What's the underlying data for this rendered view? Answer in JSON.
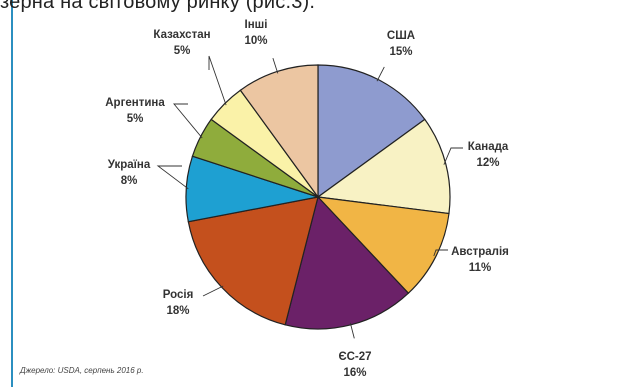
{
  "header_text": "зерна на світовому ринку (рис.3).",
  "source_note": "Джерело: USDA, серпень 2016 р.",
  "chart_data": {
    "type": "pie",
    "categories": [
      "США",
      "Канада",
      "Австралія",
      "ЄС-27",
      "Росія",
      "Україна",
      "Аргентина",
      "Казахстан",
      "Інші"
    ],
    "values": [
      15,
      12,
      11,
      16,
      18,
      8,
      5,
      5,
      10
    ],
    "value_labels": [
      "15%",
      "12%",
      "11%",
      "16%",
      "18%",
      "8%",
      "5%",
      "5%",
      "10%"
    ],
    "colors": [
      "#8e9bcf",
      "#f8f2c4",
      "#f1b545",
      "#6b2168",
      "#c4501d",
      "#1ea0d2",
      "#8fac3c",
      "#faf2a8",
      "#ecc6a2"
    ],
    "start_angle_deg": 0,
    "direction": "clockwise"
  }
}
